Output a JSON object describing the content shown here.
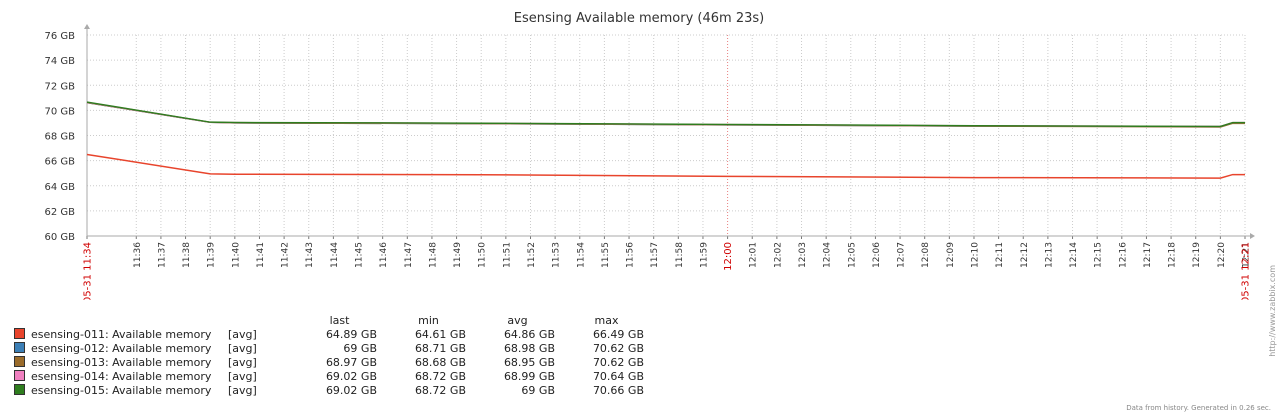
{
  "chart_data": {
    "type": "line",
    "title": "Esensing Available memory (46m 23s)",
    "ylim": [
      60,
      76
    ],
    "y_unit": "GB",
    "y_ticks": [
      "60 GB",
      "62 GB",
      "64 GB",
      "66 GB",
      "68 GB",
      "70 GB",
      "72 GB",
      "74 GB",
      "76 GB"
    ],
    "x_ticks": [
      "05-31 11:34",
      "11:36",
      "11:37",
      "11:38",
      "11:39",
      "11:40",
      "11:41",
      "11:42",
      "11:43",
      "11:44",
      "11:45",
      "11:46",
      "11:47",
      "11:48",
      "11:49",
      "11:50",
      "11:51",
      "11:52",
      "11:53",
      "11:54",
      "11:55",
      "11:56",
      "11:57",
      "11:58",
      "11:59",
      "12:00",
      "12:01",
      "12:02",
      "12:03",
      "12:04",
      "12:05",
      "12:06",
      "12:07",
      "12:08",
      "12:09",
      "12:10",
      "12:11",
      "12:12",
      "12:13",
      "12:14",
      "12:15",
      "12:16",
      "12:17",
      "12:18",
      "12:19",
      "12:20",
      "12:21",
      "05-31 12:21"
    ],
    "highlight_ticks": [
      "05-31 11:34",
      "12:00",
      "05-31 12:21"
    ],
    "grid": true,
    "x": [
      "11:34",
      "11:39",
      "11:40",
      "11:50",
      "12:00",
      "12:10",
      "12:20",
      "12:20.5",
      "12:21"
    ],
    "series": [
      {
        "name": "esensing-011: Available memory",
        "color": "#E8442C",
        "values": [
          66.49,
          64.95,
          64.92,
          64.88,
          64.75,
          64.65,
          64.61,
          64.89,
          64.89
        ]
      },
      {
        "name": "esensing-012: Available memory",
        "color": "#3C7FB6",
        "values": [
          70.62,
          69.05,
          69.0,
          68.95,
          68.85,
          68.75,
          68.71,
          69.0,
          69.0
        ]
      },
      {
        "name": "esensing-013: Available memory",
        "color": "#9A6B2A",
        "values": [
          70.62,
          69.05,
          69.0,
          68.95,
          68.85,
          68.75,
          68.68,
          68.97,
          68.97
        ]
      },
      {
        "name": "esensing-014: Available memory",
        "color": "#F080C0",
        "values": [
          70.64,
          69.05,
          69.02,
          68.97,
          68.87,
          68.77,
          68.72,
          69.02,
          69.02
        ]
      },
      {
        "name": "esensing-015: Available memory",
        "color": "#2E7D1E",
        "values": [
          70.66,
          69.06,
          69.03,
          68.98,
          68.88,
          68.78,
          68.72,
          69.02,
          69.02
        ]
      }
    ]
  },
  "legend": {
    "headers": {
      "last": "last",
      "min": "min",
      "avg": "avg",
      "max": "max"
    },
    "rows": [
      {
        "name": "esensing-011: Available memory",
        "fn": "[avg]",
        "last": "64.89 GB",
        "min": "64.61 GB",
        "avg": "64.86 GB",
        "max": "66.49 GB",
        "color": "#E8442C"
      },
      {
        "name": "esensing-012: Available memory",
        "fn": "[avg]",
        "last": "69 GB",
        "min": "68.71 GB",
        "avg": "68.98 GB",
        "max": "70.62 GB",
        "color": "#3C7FB6"
      },
      {
        "name": "esensing-013: Available memory",
        "fn": "[avg]",
        "last": "68.97 GB",
        "min": "68.68 GB",
        "avg": "68.95 GB",
        "max": "70.62 GB",
        "color": "#9A6B2A"
      },
      {
        "name": "esensing-014: Available memory",
        "fn": "[avg]",
        "last": "69.02 GB",
        "min": "68.72 GB",
        "avg": "68.99 GB",
        "max": "70.64 GB",
        "color": "#F080C0"
      },
      {
        "name": "esensing-015: Available memory",
        "fn": "[avg]",
        "last": "69.02 GB",
        "min": "68.72 GB",
        "avg": "69 GB",
        "max": "70.66 GB",
        "color": "#2E7D1E"
      }
    ]
  },
  "footer": {
    "note": "Data from history. Generated in 0.26 sec.",
    "watermark": "http://www.zabbix.com"
  }
}
